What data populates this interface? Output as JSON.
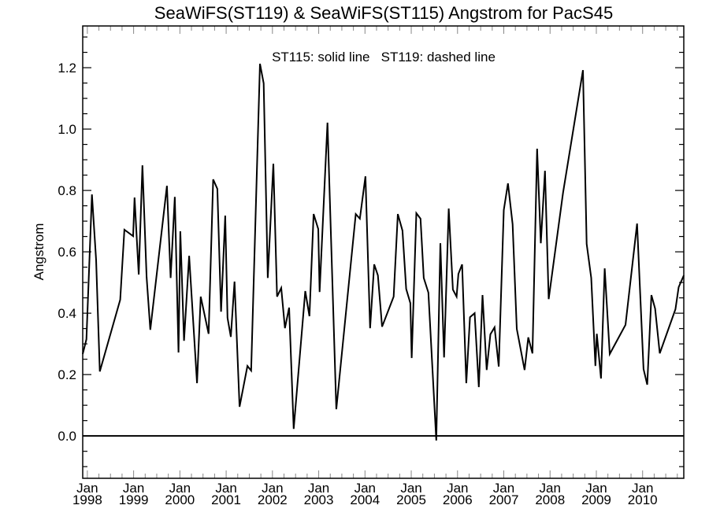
{
  "chart_data": {
    "type": "line",
    "title": "SeaWiFS(ST119) & SeaWiFS(ST115)  Angstrom for PacS45",
    "annotation": "ST115: solid line   ST119: dashed line",
    "xlabel": "",
    "ylabel": "Angstrom",
    "xlim": [
      1997.9,
      2010.89
    ],
    "ylim": [
      -0.138,
      1.336
    ],
    "grid": false,
    "reference_line": 0.0,
    "y_ticks": [
      0.0,
      0.2,
      0.4,
      0.6,
      0.8,
      1.0,
      1.2
    ],
    "y_tick_labels": [
      "0.0",
      "0.2",
      "0.4",
      "0.6",
      "0.8",
      "1.0",
      "1.2"
    ],
    "y_minor_step": 0.05,
    "x_ticks": [
      1998,
      1999,
      2000,
      2001,
      2002,
      2003,
      2004,
      2005,
      2006,
      2007,
      2008,
      2009,
      2010
    ],
    "x_tick_labels": [
      {
        "month": "Jan",
        "year": "1998"
      },
      {
        "month": "Jan",
        "year": "1999"
      },
      {
        "month": "Jan",
        "year": "2000"
      },
      {
        "month": "Jan",
        "year": "2001"
      },
      {
        "month": "Jan",
        "year": "2002"
      },
      {
        "month": "Jan",
        "year": "2003"
      },
      {
        "month": "Jan",
        "year": "2004"
      },
      {
        "month": "Jan",
        "year": "2005"
      },
      {
        "month": "Jan",
        "year": "2006"
      },
      {
        "month": "Jan",
        "year": "2007"
      },
      {
        "month": "Jan",
        "year": "2008"
      },
      {
        "month": "Jan",
        "year": "2009"
      },
      {
        "month": "Jan",
        "year": "2010"
      }
    ],
    "x_minor_step": 0.25,
    "line_color": "#000000",
    "series": [
      {
        "name": "ST115",
        "style": "solid",
        "x": [
          1997.9,
          1997.98,
          1998.1,
          1998.19,
          1998.27,
          1998.71,
          1998.8,
          1998.99,
          1999.02,
          1999.11,
          1999.19,
          1999.28,
          1999.36,
          1999.72,
          1999.8,
          1999.89,
          1999.97,
          2000.01,
          2000.09,
          2000.2,
          2000.37,
          2000.45,
          2000.62,
          2000.72,
          2000.81,
          2000.89,
          2000.98,
          2001.03,
          2001.1,
          2001.18,
          2001.29,
          2001.46,
          2001.54,
          2001.73,
          2001.81,
          2001.9,
          2002.02,
          2002.1,
          2002.19,
          2002.27,
          2002.36,
          2002.46,
          2002.71,
          2002.8,
          2002.89,
          2002.99,
          2003.02,
          2003.19,
          2003.38,
          2003.8,
          2003.89,
          2004.01,
          2004.11,
          2004.2,
          2004.28,
          2004.37,
          2004.62,
          2004.71,
          2004.81,
          2004.89,
          2004.98,
          2005.01,
          2005.11,
          2005.2,
          2005.27,
          2005.37,
          2005.54,
          2005.63,
          2005.71,
          2005.81,
          2005.9,
          2005.98,
          2006.02,
          2006.1,
          2006.19,
          2006.27,
          2006.37,
          2006.46,
          2006.54,
          2006.63,
          2006.71,
          2006.8,
          2006.89,
          2007.0,
          2007.09,
          2007.19,
          2007.28,
          2007.45,
          2007.53,
          2007.62,
          2007.72,
          2007.8,
          2007.89,
          2007.97,
          2008.28,
          2008.71,
          2008.79,
          2008.89,
          2008.98,
          2009.01,
          2009.1,
          2009.18,
          2009.29,
          2009.63,
          2009.88,
          2010.02,
          2010.1,
          2010.19,
          2010.27,
          2010.37,
          2010.71,
          2010.78,
          2010.89
        ],
        "y": [
          0.267,
          0.315,
          0.787,
          0.574,
          0.21,
          0.444,
          0.672,
          0.651,
          0.777,
          0.526,
          0.882,
          0.518,
          0.346,
          0.815,
          0.515,
          0.779,
          0.272,
          0.667,
          0.31,
          0.587,
          0.172,
          0.454,
          0.333,
          0.836,
          0.805,
          0.405,
          0.718,
          0.385,
          0.323,
          0.503,
          0.095,
          0.228,
          0.213,
          1.213,
          1.149,
          0.515,
          0.887,
          0.454,
          0.482,
          0.351,
          0.418,
          0.023,
          0.472,
          0.39,
          0.723,
          0.674,
          0.469,
          1.021,
          0.087,
          0.723,
          0.708,
          0.846,
          0.351,
          0.559,
          0.523,
          0.356,
          0.454,
          0.723,
          0.669,
          0.479,
          0.433,
          0.254,
          0.726,
          0.708,
          0.515,
          0.467,
          -0.015,
          0.628,
          0.256,
          0.741,
          0.477,
          0.454,
          0.528,
          0.559,
          0.172,
          0.387,
          0.4,
          0.159,
          0.459,
          0.215,
          0.331,
          0.354,
          0.226,
          0.736,
          0.823,
          0.69,
          0.349,
          0.215,
          0.321,
          0.269,
          0.936,
          0.628,
          0.864,
          0.446,
          0.792,
          1.192,
          0.626,
          0.515,
          0.228,
          0.333,
          0.187,
          0.546,
          0.267,
          0.362,
          0.692,
          0.218,
          0.167,
          0.459,
          0.415,
          0.269,
          0.413,
          0.485,
          0.523
        ]
      }
    ]
  }
}
